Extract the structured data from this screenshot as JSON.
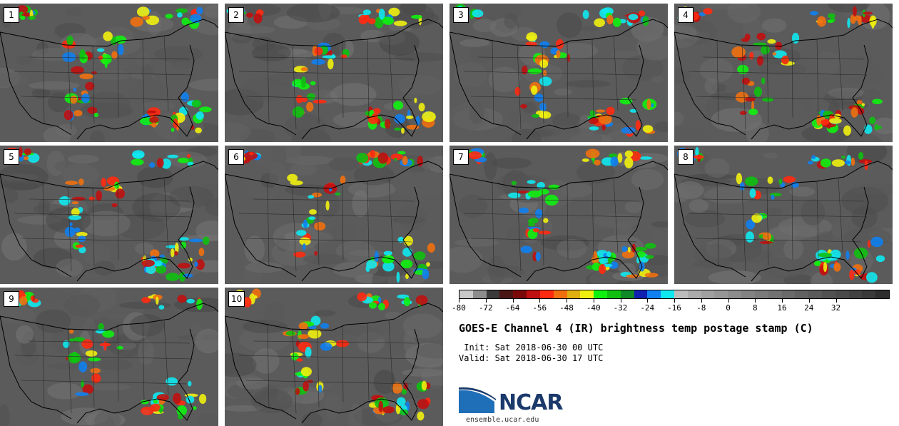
{
  "figure": {
    "title": "GOES-E Channel 4 (IR) brightness temp postage stamp (C)",
    "init_line": " Init: Sat 2018-06-30 00 UTC",
    "valid_line": "Valid: Sat 2018-06-30 17 UTC",
    "branding": {
      "logo_text": "NCAR",
      "url": "ensemble.ucar.edu"
    }
  },
  "panels": [
    {
      "label": "1"
    },
    {
      "label": "2"
    },
    {
      "label": "3"
    },
    {
      "label": "4"
    },
    {
      "label": "5"
    },
    {
      "label": "6"
    },
    {
      "label": "7"
    },
    {
      "label": "8"
    },
    {
      "label": "9"
    },
    {
      "label": "10"
    }
  ],
  "colorbar": {
    "unit": "C",
    "tick_labels": [
      "-80",
      "-72",
      "-64",
      "-56",
      "-48",
      "-40",
      "-32",
      "-24",
      "-16",
      "-8",
      "0",
      "8",
      "16",
      "24",
      "32"
    ],
    "bin_colors": [
      "#c8c8c8",
      "#8c8c8c",
      "#3a3a3a",
      "#4a1515",
      "#7a0a0a",
      "#c01010",
      "#ff2a10",
      "#f07010",
      "#e0b010",
      "#f0f010",
      "#10f010",
      "#10c010",
      "#108a28",
      "#1020b0",
      "#1080f0",
      "#10e8f0",
      "#bcbcbc",
      "#ababab",
      "#a0a0a0",
      "#969696",
      "#8c8c8c",
      "#838383",
      "#7a7a7a",
      "#727272",
      "#6a6a6a",
      "#626262",
      "#5a5a5a",
      "#525252",
      "#4a4a4a",
      "#424242",
      "#3a3a3a",
      "#2e2e2e"
    ]
  },
  "colors": {
    "background": "#ffffff",
    "map_base": "#5b5b5b",
    "cloud_tops_coldest": "#c01010",
    "ncar_blue": "#1b3a6b"
  }
}
